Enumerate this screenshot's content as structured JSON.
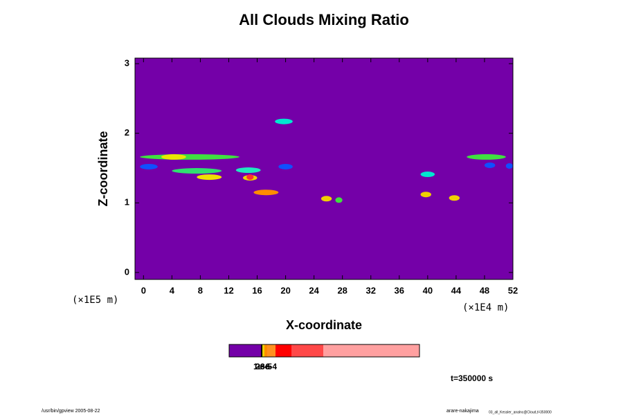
{
  "chart_data": {
    "type": "contour",
    "title": "All Clouds Mixing Ratio",
    "xlabel": "X-coordinate",
    "ylabel": "Z-coordinate",
    "x_unit": "(×1E4 m)",
    "y_unit": "(×1E5 m)",
    "background": "#7400a8",
    "xlim": [
      -1.2,
      52
    ],
    "xticks": [
      0,
      4,
      8,
      12,
      16,
      20,
      24,
      28,
      32,
      36,
      40,
      44,
      48,
      52
    ],
    "ylim": [
      -0.1,
      3.08
    ],
    "yticks": [
      0,
      1,
      2,
      3
    ],
    "clouds": [
      {
        "x": [
          18.5,
          21
        ],
        "z": 2.17,
        "color": "#00e8d0"
      },
      {
        "x": [
          -0.5,
          13.5
        ],
        "z": 1.66,
        "color": "#40e040"
      },
      {
        "x": [
          2.5,
          6
        ],
        "z": 1.66,
        "color": "#e8e800"
      },
      {
        "x": [
          -0.5,
          2
        ],
        "z": 1.52,
        "color": "#1050ff"
      },
      {
        "x": [
          4,
          11
        ],
        "z": 1.46,
        "color": "#30e070"
      },
      {
        "x": [
          7.5,
          11
        ],
        "z": 1.37,
        "color": "#f0e000"
      },
      {
        "x": [
          13,
          16.5
        ],
        "z": 1.47,
        "color": "#20e8c0"
      },
      {
        "x": [
          14,
          16
        ],
        "z": 1.36,
        "color": "#f0d000"
      },
      {
        "x": [
          14.5,
          15.5
        ],
        "z": 1.37,
        "color": "#ff3030"
      },
      {
        "x": [
          15.5,
          19
        ],
        "z": 1.15,
        "color": "#ff8c00"
      },
      {
        "x": [
          19,
          21
        ],
        "z": 1.52,
        "color": "#1050ff"
      },
      {
        "x": [
          25,
          26.5
        ],
        "z": 1.06,
        "color": "#f0d000"
      },
      {
        "x": [
          27,
          28
        ],
        "z": 1.04,
        "color": "#40e040"
      },
      {
        "x": [
          39,
          41
        ],
        "z": 1.41,
        "color": "#00e8d0"
      },
      {
        "x": [
          39,
          40.5
        ],
        "z": 1.12,
        "color": "#f0d000"
      },
      {
        "x": [
          43,
          44.5
        ],
        "z": 1.07,
        "color": "#f0d000"
      },
      {
        "x": [
          45.5,
          51
        ],
        "z": 1.66,
        "color": "#40e040"
      },
      {
        "x": [
          48,
          49.5
        ],
        "z": 1.54,
        "color": "#1050ff"
      },
      {
        "x": [
          51,
          52
        ],
        "z": 1.53,
        "color": "#1050ff"
      }
    ],
    "colorbar": {
      "colors": [
        "#7400a8",
        "#000000",
        "#f0d000",
        "#ff8c00",
        "#ff9020",
        "#ff0000",
        "#ff4848",
        "#ffa0a0"
      ],
      "labels": [
        "1e-6",
        "2e-5",
        "3e-4"
      ]
    },
    "time_label": "t=350000 s",
    "footer_left": "/usr/bin/gpview 2005-08-22",
    "footer_right": "arare-nakajima",
    "footer_right_small": "03_all_Kessler_analnc@Cloud,t=350000"
  }
}
